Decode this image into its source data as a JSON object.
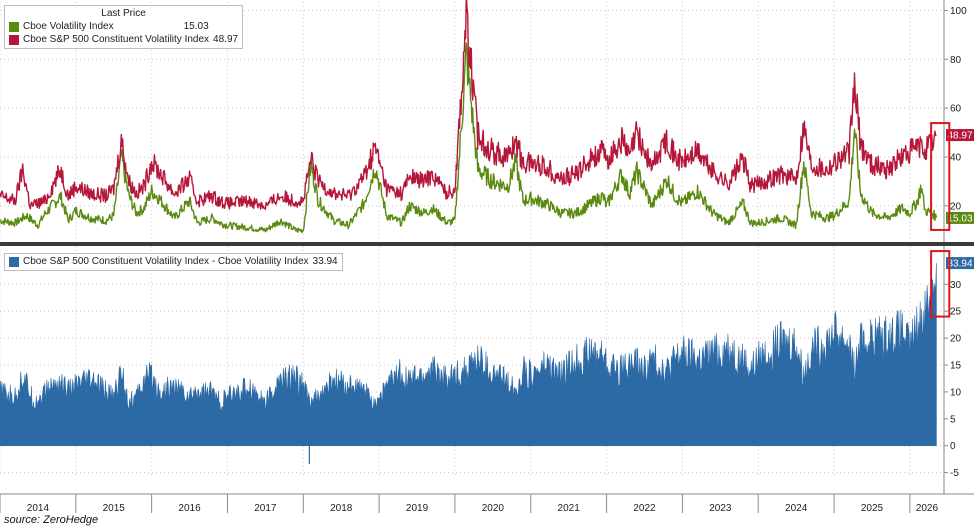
{
  "chart_data": [
    {
      "type": "line",
      "legend_title": "Last Price",
      "legend_placement": "top-left",
      "ylim": [
        6,
        101
      ],
      "yticks": [
        20,
        40,
        60,
        80,
        100
      ],
      "grid": true,
      "series": [
        {
          "name": "Cboe Volatility Index",
          "last": "15.03",
          "color": "#5a8a10",
          "points": [
            [
              2014.0,
              14
            ],
            [
              2014.2,
              13
            ],
            [
              2014.35,
              16
            ],
            [
              2014.5,
              12
            ],
            [
              2014.6,
              17
            ],
            [
              2014.8,
              24
            ],
            [
              2014.9,
              14
            ],
            [
              2015.0,
              18
            ],
            [
              2015.2,
              15
            ],
            [
              2015.4,
              14
            ],
            [
              2015.5,
              16
            ],
            [
              2015.6,
              40
            ],
            [
              2015.7,
              24
            ],
            [
              2015.8,
              17
            ],
            [
              2015.9,
              19
            ],
            [
              2016.0,
              26
            ],
            [
              2016.1,
              23
            ],
            [
              2016.3,
              15
            ],
            [
              2016.5,
              22
            ],
            [
              2016.6,
              13
            ],
            [
              2016.8,
              15
            ],
            [
              2016.9,
              13
            ],
            [
              2017.0,
              12
            ],
            [
              2017.3,
              11
            ],
            [
              2017.5,
              10
            ],
            [
              2017.7,
              14
            ],
            [
              2017.9,
              10
            ],
            [
              2018.0,
              10
            ],
            [
              2018.1,
              37
            ],
            [
              2018.2,
              22
            ],
            [
              2018.4,
              14
            ],
            [
              2018.6,
              12
            ],
            [
              2018.8,
              21
            ],
            [
              2018.95,
              36
            ],
            [
              2019.1,
              16
            ],
            [
              2019.3,
              13
            ],
            [
              2019.4,
              20
            ],
            [
              2019.6,
              17
            ],
            [
              2019.7,
              19
            ],
            [
              2019.9,
              13
            ],
            [
              2020.0,
              14
            ],
            [
              2020.15,
              82
            ],
            [
              2020.3,
              35
            ],
            [
              2020.5,
              30
            ],
            [
              2020.7,
              28
            ],
            [
              2020.8,
              38
            ],
            [
              2020.9,
              22
            ],
            [
              2021.0,
              23
            ],
            [
              2021.2,
              21
            ],
            [
              2021.4,
              17
            ],
            [
              2021.6,
              17
            ],
            [
              2021.8,
              21
            ],
            [
              2021.95,
              24
            ],
            [
              2022.0,
              20
            ],
            [
              2022.2,
              33
            ],
            [
              2022.3,
              25
            ],
            [
              2022.4,
              34
            ],
            [
              2022.5,
              27
            ],
            [
              2022.6,
              20
            ],
            [
              2022.8,
              31
            ],
            [
              2022.9,
              24
            ],
            [
              2023.0,
              21
            ],
            [
              2023.2,
              26
            ],
            [
              2023.4,
              17
            ],
            [
              2023.6,
              13
            ],
            [
              2023.8,
              21
            ],
            [
              2023.9,
              13
            ],
            [
              2024.0,
              13
            ],
            [
              2024.3,
              15
            ],
            [
              2024.5,
              12
            ],
            [
              2024.6,
              38
            ],
            [
              2024.7,
              17
            ],
            [
              2024.9,
              15
            ],
            [
              2025.0,
              16
            ],
            [
              2025.2,
              22
            ],
            [
              2025.27,
              52
            ],
            [
              2025.35,
              25
            ],
            [
              2025.5,
              17
            ],
            [
              2025.7,
              15
            ],
            [
              2025.9,
              19
            ],
            [
              2026.0,
              17
            ],
            [
              2026.1,
              22
            ],
            [
              2026.15,
              28
            ],
            [
              2026.2,
              18
            ],
            [
              2026.3,
              17
            ],
            [
              2026.35,
              15.03
            ]
          ]
        },
        {
          "name": "Cboe S&P 500 Constituent Volatility Index",
          "last": "48.97",
          "color": "#b5173a",
          "points": [
            [
              2014.0,
              24
            ],
            [
              2014.2,
              22
            ],
            [
              2014.3,
              35
            ],
            [
              2014.4,
              20
            ],
            [
              2014.6,
              22
            ],
            [
              2014.8,
              35
            ],
            [
              2014.9,
              24
            ],
            [
              2015.0,
              28
            ],
            [
              2015.2,
              25
            ],
            [
              2015.4,
              24
            ],
            [
              2015.5,
              27
            ],
            [
              2015.6,
              47
            ],
            [
              2015.7,
              30
            ],
            [
              2015.8,
              25
            ],
            [
              2015.9,
              28
            ],
            [
              2016.0,
              38
            ],
            [
              2016.1,
              34
            ],
            [
              2016.3,
              25
            ],
            [
              2016.5,
              31
            ],
            [
              2016.6,
              22
            ],
            [
              2016.8,
              24
            ],
            [
              2016.9,
              22
            ],
            [
              2017.0,
              21
            ],
            [
              2017.3,
              22
            ],
            [
              2017.5,
              20
            ],
            [
              2017.7,
              24
            ],
            [
              2017.9,
              22
            ],
            [
              2018.0,
              22
            ],
            [
              2018.1,
              39
            ],
            [
              2018.2,
              30
            ],
            [
              2018.4,
              25
            ],
            [
              2018.6,
              24
            ],
            [
              2018.8,
              32
            ],
            [
              2018.95,
              44
            ],
            [
              2019.1,
              27
            ],
            [
              2019.3,
              25
            ],
            [
              2019.4,
              32
            ],
            [
              2019.6,
              30
            ],
            [
              2019.7,
              33
            ],
            [
              2019.9,
              25
            ],
            [
              2020.0,
              27
            ],
            [
              2020.15,
              97
            ],
            [
              2020.3,
              49
            ],
            [
              2020.5,
              42
            ],
            [
              2020.7,
              40
            ],
            [
              2020.8,
              47
            ],
            [
              2020.9,
              37
            ],
            [
              2021.0,
              38
            ],
            [
              2021.2,
              36
            ],
            [
              2021.4,
              31
            ],
            [
              2021.6,
              33
            ],
            [
              2021.8,
              40
            ],
            [
              2021.95,
              42
            ],
            [
              2022.0,
              38
            ],
            [
              2022.2,
              47
            ],
            [
              2022.3,
              40
            ],
            [
              2022.4,
              50
            ],
            [
              2022.5,
              42
            ],
            [
              2022.6,
              36
            ],
            [
              2022.8,
              48
            ],
            [
              2022.9,
              40
            ],
            [
              2023.0,
              38
            ],
            [
              2023.2,
              42
            ],
            [
              2023.4,
              34
            ],
            [
              2023.6,
              29
            ],
            [
              2023.8,
              39
            ],
            [
              2023.9,
              28
            ],
            [
              2024.0,
              29
            ],
            [
              2024.3,
              33
            ],
            [
              2024.5,
              31
            ],
            [
              2024.6,
              53
            ],
            [
              2024.7,
              37
            ],
            [
              2024.9,
              35
            ],
            [
              2025.0,
              38
            ],
            [
              2025.2,
              42
            ],
            [
              2025.27,
              70
            ],
            [
              2025.35,
              45
            ],
            [
              2025.5,
              37
            ],
            [
              2025.7,
              35
            ],
            [
              2025.9,
              40
            ],
            [
              2026.0,
              42
            ],
            [
              2026.1,
              44
            ],
            [
              2026.2,
              43
            ],
            [
              2026.3,
              46
            ],
            [
              2026.35,
              48.97
            ]
          ]
        }
      ]
    },
    {
      "type": "area",
      "legend_placement": "top-left",
      "ylim": [
        -6,
        36
      ],
      "yticks": [
        -5,
        0,
        5,
        10,
        15,
        20,
        25,
        30
      ],
      "grid": true,
      "series": [
        {
          "name": "Cboe S&P 500 Constituent Volatility Index - Cboe Volatility Index",
          "last": "33.94",
          "color": "#2c6aa6",
          "points": [
            [
              2014.0,
              10
            ],
            [
              2014.2,
              9
            ],
            [
              2014.3,
              13
            ],
            [
              2014.45,
              8
            ],
            [
              2014.6,
              10
            ],
            [
              2014.8,
              12
            ],
            [
              2014.9,
              10
            ],
            [
              2015.0,
              11
            ],
            [
              2015.2,
              12
            ],
            [
              2015.4,
              10
            ],
            [
              2015.5,
              9
            ],
            [
              2015.6,
              14
            ],
            [
              2015.7,
              8
            ],
            [
              2015.8,
              9
            ],
            [
              2015.9,
              12
            ],
            [
              2016.0,
              13
            ],
            [
              2016.1,
              10
            ],
            [
              2016.3,
              11
            ],
            [
              2016.5,
              9
            ],
            [
              2016.6,
              10
            ],
            [
              2016.8,
              10
            ],
            [
              2016.9,
              8
            ],
            [
              2017.0,
              9
            ],
            [
              2017.3,
              11
            ],
            [
              2017.5,
              8
            ],
            [
              2017.7,
              12
            ],
            [
              2017.9,
              13
            ],
            [
              2018.0,
              11
            ],
            [
              2018.1,
              8
            ],
            [
              2018.2,
              9
            ],
            [
              2018.4,
              12
            ],
            [
              2018.6,
              11
            ],
            [
              2018.8,
              10
            ],
            [
              2018.95,
              8
            ],
            [
              2019.1,
              11
            ],
            [
              2019.3,
              14
            ],
            [
              2019.4,
              12
            ],
            [
              2019.6,
              13
            ],
            [
              2019.7,
              14
            ],
            [
              2019.9,
              12
            ],
            [
              2020.0,
              13
            ],
            [
              2020.15,
              14
            ],
            [
              2020.3,
              16
            ],
            [
              2020.5,
              13
            ],
            [
              2020.7,
              12
            ],
            [
              2020.8,
              10
            ],
            [
              2020.9,
              14
            ],
            [
              2021.0,
              13
            ],
            [
              2021.2,
              15
            ],
            [
              2021.4,
              13
            ],
            [
              2021.6,
              16
            ],
            [
              2021.8,
              17
            ],
            [
              2021.95,
              17
            ],
            [
              2022.0,
              15
            ],
            [
              2022.2,
              14
            ],
            [
              2022.3,
              15
            ],
            [
              2022.4,
              15
            ],
            [
              2022.5,
              14
            ],
            [
              2022.6,
              16
            ],
            [
              2022.8,
              14
            ],
            [
              2022.9,
              16
            ],
            [
              2023.0,
              17
            ],
            [
              2023.2,
              16
            ],
            [
              2023.4,
              17
            ],
            [
              2023.6,
              18
            ],
            [
              2023.8,
              16
            ],
            [
              2023.9,
              14
            ],
            [
              2024.0,
              16
            ],
            [
              2024.3,
              19
            ],
            [
              2024.5,
              19
            ],
            [
              2024.6,
              13
            ],
            [
              2024.7,
              18
            ],
            [
              2024.9,
              19
            ],
            [
              2025.0,
              21
            ],
            [
              2025.2,
              19
            ],
            [
              2025.27,
              14
            ],
            [
              2025.35,
              19
            ],
            [
              2025.5,
              20
            ],
            [
              2025.7,
              20
            ],
            [
              2025.9,
              21
            ],
            [
              2026.0,
              18
            ],
            [
              2026.1,
              22
            ],
            [
              2026.2,
              25
            ],
            [
              2026.3,
              29
            ],
            [
              2026.35,
              33.94
            ]
          ]
        }
      ]
    }
  ],
  "x_axis": {
    "labels": [
      "2014",
      "2015",
      "2016",
      "2017",
      "2018",
      "2019",
      "2020",
      "2021",
      "2022",
      "2023",
      "2024",
      "2025",
      "2026"
    ],
    "range": [
      2014.0,
      2026.45
    ]
  },
  "highlight_color": "#e0141e",
  "source": "source: ZeroHedge"
}
